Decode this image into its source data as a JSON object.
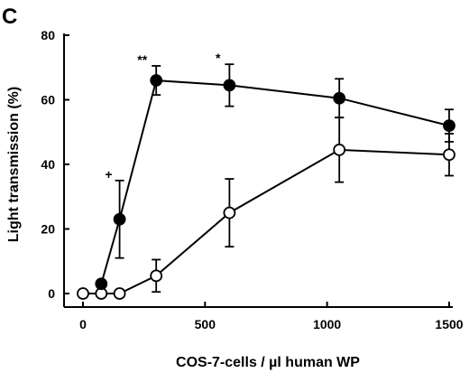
{
  "panel_label": "C",
  "chart_data": {
    "type": "line",
    "title": "",
    "xlabel": "COS-7-cells / µl human WP",
    "ylabel": "Light transmission (%)",
    "xlim": [
      0,
      1500
    ],
    "ylim": [
      0,
      80
    ],
    "x_ticks": [
      "0",
      "500",
      "1000",
      "1500"
    ],
    "y_ticks": [
      "0",
      "20",
      "40",
      "60",
      "80"
    ],
    "grid": false,
    "legend": "none",
    "series": [
      {
        "marker": "filled-circle",
        "color": "#000000",
        "points": [
          {
            "x": 75,
            "y": 3,
            "err": 0
          },
          {
            "x": 150,
            "y": 23,
            "err": 12
          },
          {
            "x": 300,
            "y": 66,
            "err": 4.5
          },
          {
            "x": 600,
            "y": 64.5,
            "err": 6.5
          },
          {
            "x": 1050,
            "y": 60.5,
            "err": 6
          },
          {
            "x": 1500,
            "y": 52,
            "err": 5
          }
        ]
      },
      {
        "marker": "open-circle",
        "color": "#000000",
        "points": [
          {
            "x": 0,
            "y": 0,
            "err": 0
          },
          {
            "x": 75,
            "y": 0,
            "err": 0
          },
          {
            "x": 150,
            "y": 0,
            "err": 0
          },
          {
            "x": 300,
            "y": 5.5,
            "err": 5
          },
          {
            "x": 600,
            "y": 25,
            "err": 10.5
          },
          {
            "x": 1050,
            "y": 44.5,
            "err": 10
          },
          {
            "x": 1500,
            "y": 43,
            "err": 6.5
          }
        ]
      }
    ],
    "annotations": [
      {
        "text": "+",
        "x": 150,
        "y": 23
      },
      {
        "text": "**",
        "x": 300,
        "y": 66
      },
      {
        "text": "*",
        "x": 600,
        "y": 64.5
      }
    ]
  }
}
